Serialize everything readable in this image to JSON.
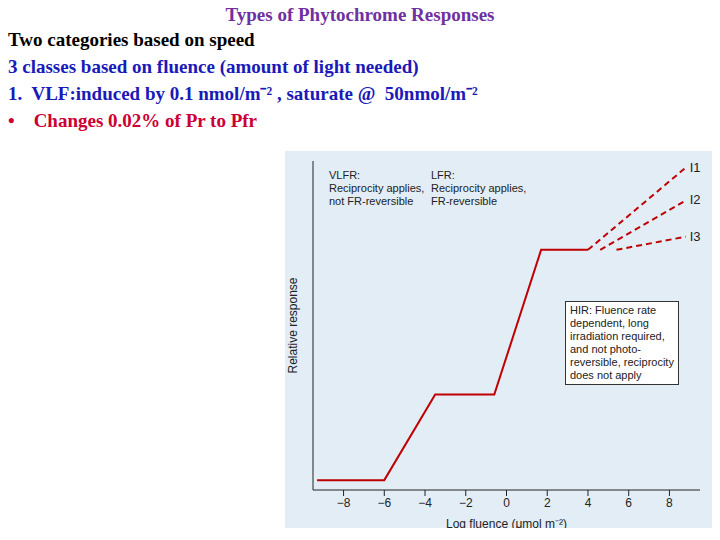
{
  "slide": {
    "title": "Types of Phytochrome Responses",
    "lines": [
      {
        "text": "Two categories based on speed",
        "color": "#000000"
      },
      {
        "text": "3 classes based on fluence (amount of light needed)",
        "color": "#1a1ab8"
      },
      {
        "text": "1.  VLF:induced by 0.1 nmol/m⁻² , saturate @  50nmol/m⁻²",
        "color": "#1a1ab8"
      },
      {
        "text": "•    Changes 0.02% of Pr to Pfr",
        "color": "#cc0033"
      }
    ]
  },
  "chart_data": {
    "type": "line",
    "x_label": "Log fluence (μmol m⁻²)",
    "y_label": "Relative response",
    "xlim": [
      -9.5,
      9.5
    ],
    "xticks": [
      {
        "value": -8,
        "label": "−8"
      },
      {
        "value": -6,
        "label": "−6"
      },
      {
        "value": -4,
        "label": "−4"
      },
      {
        "value": -2,
        "label": "−2"
      },
      0,
      2,
      4,
      6,
      8
    ],
    "ylim": [
      0,
      100
    ],
    "tick_labels": "x",
    "grid": false,
    "series": [
      {
        "color": "#c00000",
        "line_style": "solid",
        "x": [
          -9.3,
          -6,
          -3.5,
          -0.6,
          1.7,
          4
        ],
        "values": [
          3,
          3,
          29,
          29,
          73,
          73
        ]
      },
      {
        "name": "I1",
        "color": "#c00000",
        "line_style": "dashed",
        "x": [
          4,
          8.8
        ],
        "values": [
          73,
          98
        ]
      },
      {
        "name": "I2",
        "color": "#c00000",
        "line_style": "dashed",
        "x": [
          4.6,
          8.8
        ],
        "values": [
          73,
          88
        ]
      },
      {
        "name": "I3",
        "color": "#c00000",
        "line_style": "dashed",
        "x": [
          5.4,
          8.8
        ],
        "values": [
          73,
          77
        ]
      }
    ],
    "annotations": [
      {
        "text": "VLFR:\nReciprocity applies,\nnot FR-reversible"
      },
      {
        "text": "LFR:\nReciprocity applies,\nFR-reversible"
      },
      {
        "text": "HIR: Fluence rate\ndependent, long\nirradiation required,\nand not photo-\nreversible, reciprocity\ndoes not apply"
      }
    ]
  }
}
